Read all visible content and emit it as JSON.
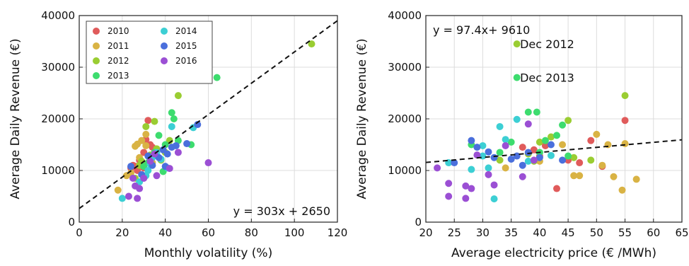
{
  "chart_data": [
    {
      "type": "scatter",
      "xlabel": "Monthly volatility (%)",
      "ylabel": "Average Daily Revenue (€)",
      "xlim": [
        0,
        120
      ],
      "ylim": [
        0,
        40000
      ],
      "xticks": [
        0,
        20,
        40,
        60,
        80,
        100,
        120
      ],
      "yticks": [
        0,
        10000,
        20000,
        30000,
        40000
      ],
      "tick_labels_x": [
        "0",
        "20",
        "40",
        "60",
        "80",
        "100",
        "120"
      ],
      "tick_labels_y": [
        "0",
        "10000",
        "20000",
        "30000",
        "40000"
      ],
      "grid": true,
      "legend": "top-left",
      "fit": {
        "slope": 303,
        "intercept": 2650,
        "label": "y = 303x + 2650",
        "style": "dashed"
      },
      "series": [
        {
          "name": "2010",
          "color": "#e05b5b",
          "points": [
            [
              24,
              10500
            ],
            [
              25,
              11000
            ],
            [
              26,
              10800
            ],
            [
              28,
              12000
            ],
            [
              29,
              11500
            ],
            [
              30,
              13500
            ],
            [
              31,
              16000
            ],
            [
              32,
              19700
            ],
            [
              33,
              15000
            ],
            [
              34,
              14500
            ],
            [
              30,
              10500
            ],
            [
              27,
              10000
            ]
          ]
        },
        {
          "name": "2011",
          "color": "#d9b344",
          "points": [
            [
              18,
              6200
            ],
            [
              22,
              9000
            ],
            [
              24,
              9500
            ],
            [
              26,
              14700
            ],
            [
              27,
              15100
            ],
            [
              29,
              15800
            ],
            [
              31,
              17000
            ],
            [
              33,
              12000
            ],
            [
              34,
              11500
            ],
            [
              31,
              14800
            ],
            [
              28,
              12500
            ]
          ]
        },
        {
          "name": "2012",
          "color": "#9acd32",
          "points": [
            [
              26,
              8500
            ],
            [
              28,
              11000
            ],
            [
              29,
              11800
            ],
            [
              31,
              18500
            ],
            [
              33,
              13000
            ],
            [
              35,
              19500
            ],
            [
              36,
              14200
            ],
            [
              38,
              12000
            ],
            [
              40,
              13500
            ],
            [
              42,
              15800
            ],
            [
              46,
              24500
            ],
            [
              108,
              34500
            ]
          ]
        },
        {
          "name": "2013",
          "color": "#3ddc6e",
          "points": [
            [
              30,
              10800
            ],
            [
              32,
              11500
            ],
            [
              35,
              13500
            ],
            [
              37,
              16800
            ],
            [
              40,
              15000
            ],
            [
              43,
              21200
            ],
            [
              44,
              20000
            ],
            [
              46,
              15800
            ],
            [
              52,
              15000
            ],
            [
              64,
              28000
            ],
            [
              39,
              9800
            ]
          ]
        },
        {
          "name": "2014",
          "color": "#3ccfd4",
          "points": [
            [
              20,
              4600
            ],
            [
              28,
              7800
            ],
            [
              31,
              9000
            ],
            [
              32,
              10000
            ],
            [
              34,
              12500
            ],
            [
              36,
              13500
            ],
            [
              38,
              12200
            ],
            [
              41,
              10500
            ],
            [
              43,
              18500
            ],
            [
              53,
              18300
            ],
            [
              33,
              11200
            ]
          ]
        },
        {
          "name": "2015",
          "color": "#4a6fdc",
          "points": [
            [
              24,
              10800
            ],
            [
              29,
              9200
            ],
            [
              32,
              12800
            ],
            [
              34,
              11000
            ],
            [
              37,
              12500
            ],
            [
              39,
              14000
            ],
            [
              40,
              10800
            ],
            [
              41,
              13200
            ],
            [
              43,
              14500
            ],
            [
              45,
              14800
            ],
            [
              50,
              15200
            ],
            [
              55,
              18900
            ]
          ]
        },
        {
          "name": "2016",
          "color": "#9b4fd4",
          "points": [
            [
              23,
              5000
            ],
            [
              25,
              8500
            ],
            [
              26,
              7000
            ],
            [
              27,
              4600
            ],
            [
              28,
              6500
            ],
            [
              30,
              8500
            ],
            [
              33,
              11800
            ],
            [
              35,
              13200
            ],
            [
              36,
              9000
            ],
            [
              42,
              10400
            ],
            [
              46,
              13500
            ],
            [
              60,
              11500
            ]
          ]
        }
      ]
    },
    {
      "type": "scatter",
      "xlabel": "Average electricity price (€ /MWh)",
      "ylabel": "Average Daily Revenue (€)",
      "xlim": [
        20,
        65
      ],
      "ylim": [
        0,
        40000
      ],
      "xticks": [
        20,
        25,
        30,
        35,
        40,
        45,
        50,
        55,
        60,
        65
      ],
      "yticks": [
        0,
        10000,
        20000,
        30000,
        40000
      ],
      "tick_labels_x": [
        "20",
        "25",
        "30",
        "35",
        "40",
        "45",
        "50",
        "55",
        "60",
        "65"
      ],
      "tick_labels_y": [
        "0",
        "10000",
        "20000",
        "30000",
        "40000"
      ],
      "grid": true,
      "fit": {
        "slope": 97.4,
        "intercept": 9610,
        "label": "y = 97.4x+ 9610",
        "style": "dashed"
      },
      "annotations": [
        {
          "text": "Dec 2012",
          "x": 35.8,
          "y": 34500
        },
        {
          "text": "Dec 2013",
          "x": 35.8,
          "y": 28000
        }
      ],
      "series": [
        {
          "name": "2010",
          "color": "#e05b5b",
          "points": [
            [
              37,
              14500
            ],
            [
              39,
              14000
            ],
            [
              41,
              14800
            ],
            [
              43,
              6500
            ],
            [
              45,
              12000
            ],
            [
              47,
              11500
            ],
            [
              49,
              15800
            ],
            [
              51,
              10800
            ],
            [
              55,
              19700
            ],
            [
              40,
              12800
            ]
          ]
        },
        {
          "name": "2011",
          "color": "#d9b344",
          "points": [
            [
              34,
              10500
            ],
            [
              40,
              11800
            ],
            [
              44,
              15000
            ],
            [
              47,
              9000
            ],
            [
              50,
              17000
            ],
            [
              51,
              11000
            ],
            [
              52,
              15000
            ],
            [
              53,
              8800
            ],
            [
              54.5,
              6200
            ],
            [
              55,
              15200
            ],
            [
              57,
              8300
            ],
            [
              46,
              9000
            ]
          ]
        },
        {
          "name": "2012",
          "color": "#9acd32",
          "points": [
            [
              33,
              12000
            ],
            [
              36,
              34500
            ],
            [
              38,
              13200
            ],
            [
              40,
              15500
            ],
            [
              42,
              16500
            ],
            [
              45,
              19700
            ],
            [
              46,
              12500
            ],
            [
              49,
              12000
            ],
            [
              55,
              24500
            ],
            [
              39,
              11800
            ]
          ]
        },
        {
          "name": "2013",
          "color": "#3ddc6e",
          "points": [
            [
              28,
              15000
            ],
            [
              33,
              13500
            ],
            [
              35,
              15500
            ],
            [
              36,
              28000
            ],
            [
              38,
              21300
            ],
            [
              39.5,
              21300
            ],
            [
              41,
              15800
            ],
            [
              43,
              16800
            ],
            [
              44,
              18800
            ],
            [
              45,
              12800
            ],
            [
              40,
              13500
            ]
          ]
        },
        {
          "name": "2014",
          "color": "#3ccfd4",
          "points": [
            [
              24,
              11500
            ],
            [
              28,
              10200
            ],
            [
              30,
              14800
            ],
            [
              31,
              10500
            ],
            [
              32,
              4500
            ],
            [
              33,
              18500
            ],
            [
              34,
              16000
            ],
            [
              36,
              19900
            ],
            [
              38,
              11800
            ],
            [
              42,
              12900
            ],
            [
              30,
              12800
            ]
          ]
        },
        {
          "name": "2015",
          "color": "#4a6fdc",
          "points": [
            [
              25,
              11500
            ],
            [
              28,
              15800
            ],
            [
              29,
              14500
            ],
            [
              31,
              13600
            ],
            [
              32,
              12500
            ],
            [
              35,
              12200
            ],
            [
              37,
              11000
            ],
            [
              38,
              13500
            ],
            [
              40,
              12500
            ],
            [
              42,
              15000
            ],
            [
              44,
              12000
            ],
            [
              36,
              12800
            ]
          ]
        },
        {
          "name": "2016",
          "color": "#9b4fd4",
          "points": [
            [
              22,
              10500
            ],
            [
              24,
              7500
            ],
            [
              24,
              5000
            ],
            [
              27,
              4600
            ],
            [
              27,
              7000
            ],
            [
              28,
              6500
            ],
            [
              29,
              13000
            ],
            [
              31,
              9200
            ],
            [
              32,
              7200
            ],
            [
              34,
              14800
            ],
            [
              37,
              8800
            ],
            [
              38,
              19000
            ],
            [
              39,
              12000
            ]
          ]
        }
      ]
    }
  ]
}
